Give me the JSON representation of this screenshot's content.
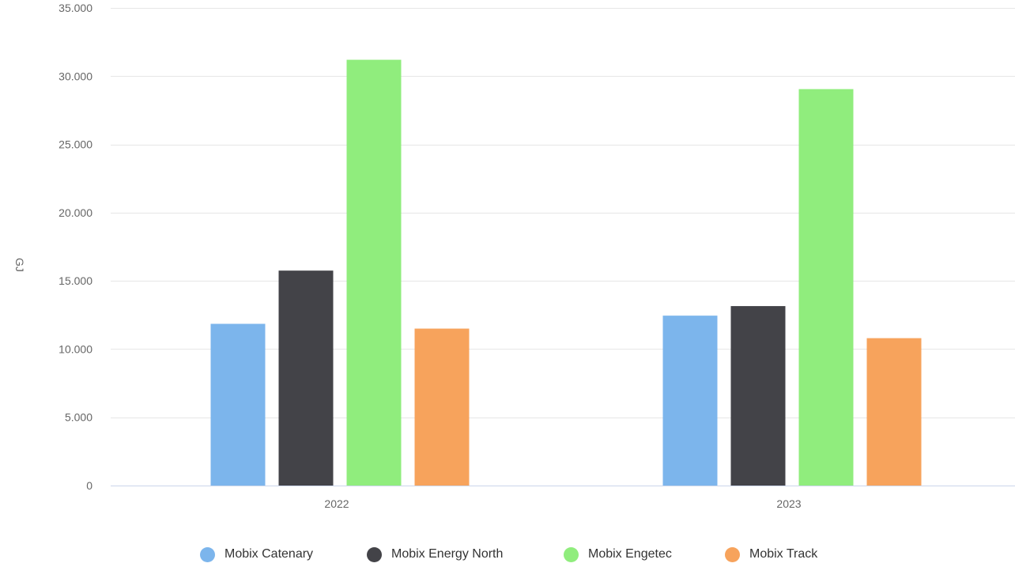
{
  "chart_data": {
    "type": "bar",
    "title": "",
    "xlabel": "",
    "ylabel": "GJ",
    "categories": [
      "2022",
      "2023"
    ],
    "ylim": [
      0,
      35000
    ],
    "yticks": [
      0,
      5000,
      10000,
      15000,
      20000,
      25000,
      30000,
      35000
    ],
    "ytick_labels": [
      "0",
      "5.000",
      "10.000",
      "15.000",
      "20.000",
      "25.000",
      "30.000",
      "35.000"
    ],
    "grid": true,
    "legend_position": "bottom",
    "series": [
      {
        "name": "Mobix Catenary",
        "color": "#7cb5ec",
        "values": [
          11850,
          12450
        ]
      },
      {
        "name": "Mobix Energy North",
        "color": "#434348",
        "values": [
          15750,
          13150
        ]
      },
      {
        "name": "Mobix Engetec",
        "color": "#90ed7d",
        "values": [
          31200,
          29050
        ]
      },
      {
        "name": "Mobix Track",
        "color": "#f7a35c",
        "values": [
          11500,
          10800
        ]
      }
    ]
  }
}
